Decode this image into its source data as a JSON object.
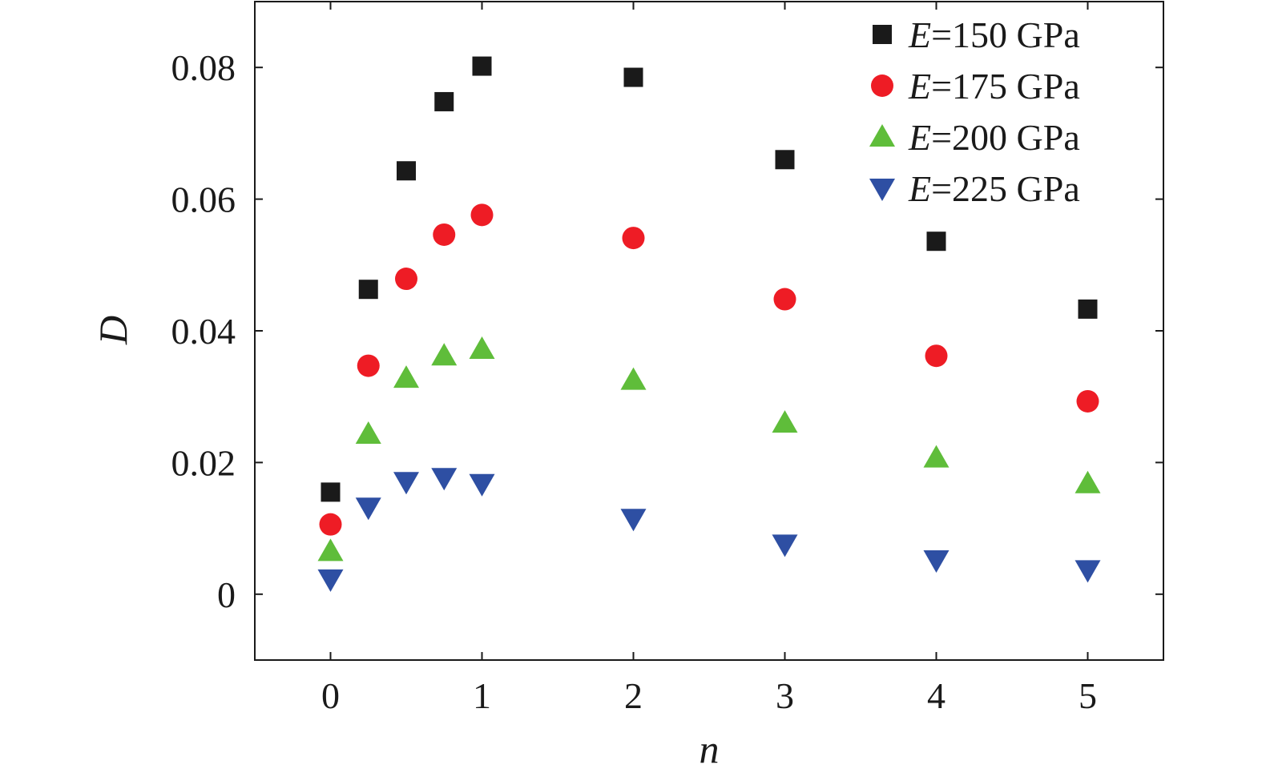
{
  "chart_data": {
    "type": "scatter",
    "title": "",
    "xlabel": "n",
    "ylabel": "D",
    "xlim": [
      -0.5,
      5.5
    ],
    "ylim": [
      -0.01,
      0.09
    ],
    "x_ticks": [
      0,
      1,
      2,
      3,
      4,
      5
    ],
    "x_tick_labels": [
      "0",
      "1",
      "2",
      "3",
      "4",
      "5"
    ],
    "y_ticks": [
      0,
      0.02,
      0.04,
      0.06,
      0.08
    ],
    "y_tick_labels": [
      "0",
      "0.02",
      "0.04",
      "0.06",
      "0.08"
    ],
    "grid": false,
    "legend_position": "top-right",
    "x": [
      0,
      0.25,
      0.5,
      0.75,
      1,
      2,
      3,
      4,
      5
    ],
    "series": [
      {
        "name": "E=150 GPa",
        "legend_var": "E",
        "legend_rest": "=150 GPa",
        "marker": "square",
        "color": "#1a1a1a",
        "values": [
          0.0155,
          0.0463,
          0.0643,
          0.0748,
          0.0802,
          0.0785,
          0.066,
          0.0536,
          0.0433
        ]
      },
      {
        "name": "E=175 GPa",
        "legend_var": "E",
        "legend_rest": "=175 GPa",
        "marker": "circle",
        "color": "#ee1c25",
        "values": [
          0.0106,
          0.0347,
          0.0479,
          0.0546,
          0.0576,
          0.0541,
          0.0448,
          0.0362,
          0.0293
        ]
      },
      {
        "name": "E=200 GPa",
        "legend_var": "E",
        "legend_rest": "=200 GPa",
        "marker": "triangle-up",
        "color": "#5fbd3a",
        "values": [
          0.0065,
          0.0243,
          0.0328,
          0.0362,
          0.0372,
          0.0325,
          0.026,
          0.0207,
          0.0168
        ]
      },
      {
        "name": "E=225 GPa",
        "legend_var": "E",
        "legend_rest": "=225 GPa",
        "marker": "triangle-down",
        "color": "#2e4fa3",
        "values": [
          0.0023,
          0.0132,
          0.0171,
          0.0177,
          0.0168,
          0.0115,
          0.0076,
          0.0052,
          0.0037
        ]
      }
    ]
  }
}
